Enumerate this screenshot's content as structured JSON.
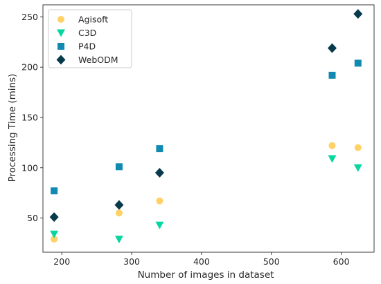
{
  "chart_data": {
    "type": "scatter",
    "title": "",
    "xlabel": "Number of images in dataset",
    "ylabel": "Processing Time (mins)",
    "xlim": [
      173,
      647
    ],
    "ylim": [
      16,
      262
    ],
    "xticks": [
      200,
      300,
      400,
      500,
      600
    ],
    "yticks": [
      50,
      100,
      150,
      200,
      250
    ],
    "grid": false,
    "legend_position": "top-left",
    "series": [
      {
        "name": "Agisoft",
        "marker": "circle",
        "color": "#ffd166",
        "points": [
          [
            189,
            29
          ],
          [
            282,
            55
          ],
          [
            340,
            67
          ],
          [
            587,
            122
          ],
          [
            624,
            120
          ]
        ]
      },
      {
        "name": "C3D",
        "marker": "triangle-down",
        "color": "#06d6a0",
        "points": [
          [
            189,
            34
          ],
          [
            282,
            29
          ],
          [
            340,
            43
          ],
          [
            587,
            109
          ],
          [
            624,
            100
          ]
        ]
      },
      {
        "name": "P4D",
        "marker": "square",
        "color": "#118ab2",
        "points": [
          [
            189,
            77
          ],
          [
            282,
            101
          ],
          [
            340,
            119
          ],
          [
            587,
            192
          ],
          [
            624,
            204
          ]
        ]
      },
      {
        "name": "WebODM",
        "marker": "diamond",
        "color": "#073b4c",
        "points": [
          [
            189,
            51
          ],
          [
            282,
            63
          ],
          [
            340,
            95
          ],
          [
            587,
            219
          ],
          [
            624,
            253
          ]
        ]
      }
    ]
  }
}
